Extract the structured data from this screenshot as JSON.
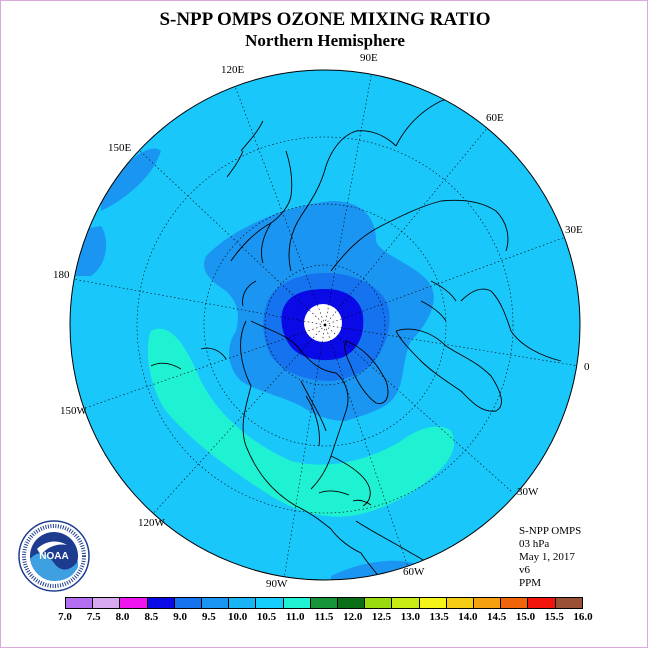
{
  "title": "S-NPP OMPS OZONE MIXING RATIO",
  "subtitle": "Northern Hemisphere",
  "longitude_labels": [
    {
      "text": "90E",
      "lon": 90
    },
    {
      "text": "120E",
      "lon": 120
    },
    {
      "text": "60E",
      "lon": 60
    },
    {
      "text": "150E",
      "lon": 150
    },
    {
      "text": "30E",
      "lon": 30
    },
    {
      "text": "180",
      "lon": 180
    },
    {
      "text": "0",
      "lon": 0
    },
    {
      "text": "150W",
      "lon": -150
    },
    {
      "text": "30W",
      "lon": -30
    },
    {
      "text": "120W",
      "lon": -120
    },
    {
      "text": "60W",
      "lon": -60
    },
    {
      "text": "90W",
      "lon": -90
    }
  ],
  "info": {
    "instrument": "S-NPP OMPS",
    "level": "03 hPa",
    "date": "May 1, 2017",
    "version": "v6",
    "units": "PPM"
  },
  "colorbar": {
    "ticks": [
      "7.0",
      "7.5",
      "8.0",
      "8.5",
      "9.0",
      "9.5",
      "10.0",
      "10.5",
      "11.0",
      "11.5",
      "12.0",
      "12.5",
      "13.0",
      "13.5",
      "14.0",
      "14.5",
      "15.0",
      "15.5",
      "16.0"
    ],
    "colors": [
      "#b36df0",
      "#d8a8ee",
      "#ee14ee",
      "#0a0ae6",
      "#1573f0",
      "#1a96f2",
      "#19b4f3",
      "#14cdfb",
      "#1ff2d2",
      "#15943a",
      "#0a6e16",
      "#99db0e",
      "#c8eb14",
      "#f4f419",
      "#f5cb14",
      "#f5a00f",
      "#f0640a",
      "#f0140a",
      "#9a5034"
    ]
  },
  "map": {
    "background_color": "#19c7fb",
    "pole_hole_color": "#ffffff",
    "regions": [
      {
        "name": "polar-core",
        "color": "#0a0ae6"
      },
      {
        "name": "polar-ring",
        "color": "#1573f0"
      },
      {
        "name": "arctic-band",
        "color": "#1a96f2"
      },
      {
        "name": "pacific-patch",
        "color": "#1a96f2"
      },
      {
        "name": "subtropical-band",
        "color": "#1ff2d2"
      }
    ]
  },
  "logo": {
    "text": "NOAA",
    "ring_text": "NATIONAL OCEANIC AND ATMOSPHERIC ADMINISTRATION · U.S. DEPARTMENT OF COMMERCE"
  }
}
